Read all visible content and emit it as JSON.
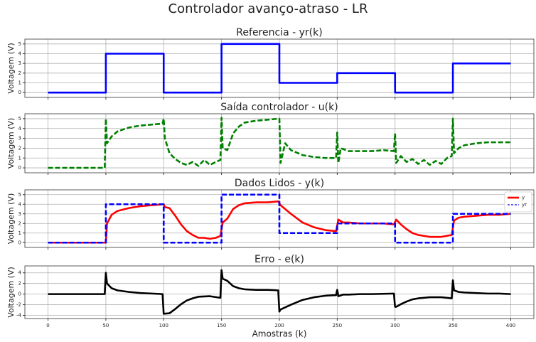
{
  "title": "Controlador avanço-atraso - LR",
  "chart_data": [
    {
      "type": "line",
      "title": "Referencia - yr(k)",
      "ylabel": "Voltagem (V)",
      "xlim": [
        -20,
        420
      ],
      "ylim": [
        -0.5,
        5.5
      ],
      "xticks": [
        0,
        50,
        100,
        150,
        200,
        250,
        300,
        350,
        400
      ],
      "yticks": [
        0,
        1,
        2,
        3,
        4,
        5
      ],
      "grid": true,
      "series": [
        {
          "name": "yr",
          "color": "#0000ff",
          "linestyle": "solid",
          "x": [
            0,
            50,
            50,
            100,
            100,
            150,
            150,
            200,
            200,
            250,
            250,
            300,
            300,
            350,
            350,
            400
          ],
          "values": [
            0,
            0,
            4,
            4,
            0,
            0,
            5,
            5,
            1,
            1,
            2,
            2,
            0,
            0,
            3,
            3
          ]
        }
      ]
    },
    {
      "type": "line",
      "title": "Saída controlador - u(k)",
      "ylabel": "Voltagem (V)",
      "xlim": [
        -20,
        420
      ],
      "ylim": [
        -0.5,
        5.5
      ],
      "xticks": [
        0,
        50,
        100,
        150,
        200,
        250,
        300,
        350,
        400
      ],
      "yticks": [
        0,
        1,
        2,
        3,
        4,
        5
      ],
      "grid": true,
      "series": [
        {
          "name": "u",
          "color": "#008000",
          "linestyle": "dashed",
          "x": [
            0,
            49,
            50,
            51,
            55,
            60,
            70,
            80,
            90,
            99,
            100,
            101,
            105,
            110,
            115,
            120,
            125,
            130,
            135,
            140,
            145,
            149,
            150,
            151,
            155,
            160,
            165,
            170,
            180,
            190,
            199,
            200,
            201,
            205,
            210,
            220,
            230,
            240,
            249,
            250,
            251,
            253,
            260,
            270,
            280,
            290,
            299,
            300,
            301,
            305,
            310,
            315,
            320,
            325,
            330,
            335,
            340,
            345,
            349,
            350,
            351,
            355,
            360,
            370,
            380,
            390,
            400
          ],
          "values": [
            0,
            0,
            5,
            2.5,
            3.2,
            3.7,
            4.1,
            4.3,
            4.4,
            4.5,
            5,
            3,
            1.5,
            0.9,
            0.5,
            0.3,
            0.6,
            0.2,
            0.8,
            0.3,
            0.6,
            0.8,
            5.1,
            2,
            1.8,
            3.5,
            4.2,
            4.6,
            4.8,
            4.9,
            5,
            5,
            0.5,
            2.5,
            1.8,
            1.3,
            1.1,
            1.0,
            1.0,
            3.6,
            0.5,
            2,
            1.7,
            1.7,
            1.7,
            1.8,
            1.7,
            3.5,
            0.5,
            1.2,
            0.6,
            0.9,
            0.4,
            0.8,
            0.3,
            0.7,
            0.4,
            1.0,
            1.2,
            5.0,
            1.5,
            2.0,
            2.3,
            2.5,
            2.6,
            2.6,
            2.6
          ]
        }
      ]
    },
    {
      "type": "line",
      "title": "Dados Lidos - y(k)",
      "ylabel": "Voltagem (V)",
      "xlim": [
        -20,
        420
      ],
      "ylim": [
        -0.5,
        5.5
      ],
      "xticks": [
        0,
        50,
        100,
        150,
        200,
        250,
        300,
        350,
        400
      ],
      "yticks": [
        0,
        1,
        2,
        3,
        4,
        5
      ],
      "grid": true,
      "legend": "upper right",
      "series": [
        {
          "name": "y",
          "color": "#ff0000",
          "linestyle": "solid",
          "x": [
            0,
            50,
            51,
            55,
            60,
            70,
            80,
            90,
            100,
            101,
            105,
            110,
            115,
            120,
            125,
            130,
            135,
            140,
            145,
            149,
            151,
            155,
            160,
            165,
            170,
            180,
            190,
            199,
            201,
            205,
            210,
            220,
            230,
            240,
            249,
            251,
            255,
            260,
            270,
            280,
            290,
            299,
            301,
            305,
            310,
            315,
            320,
            330,
            340,
            349,
            351,
            355,
            360,
            370,
            380,
            390,
            400
          ],
          "values": [
            0,
            0,
            2,
            2.9,
            3.3,
            3.6,
            3.8,
            3.9,
            4.0,
            3.7,
            3.6,
            2.8,
            1.9,
            1.2,
            0.8,
            0.5,
            0.5,
            0.4,
            0.5,
            0.7,
            2.1,
            2.5,
            3.5,
            3.9,
            4.1,
            4.2,
            4.2,
            4.3,
            3.9,
            3.5,
            3.0,
            2.1,
            1.6,
            1.3,
            1.2,
            2.4,
            2.1,
            2.1,
            2.0,
            2.0,
            2.0,
            1.9,
            2.4,
            1.9,
            1.4,
            1.0,
            0.8,
            0.6,
            0.6,
            0.8,
            2.3,
            2.6,
            2.7,
            2.8,
            2.9,
            2.9,
            3.0
          ]
        },
        {
          "name": "yr",
          "color": "#0000ff",
          "linestyle": "dashed",
          "x": [
            0,
            50,
            50,
            100,
            100,
            150,
            150,
            200,
            200,
            250,
            250,
            300,
            300,
            350,
            350,
            400
          ],
          "values": [
            0,
            0,
            4,
            4,
            0,
            0,
            5,
            5,
            1,
            1,
            2,
            2,
            0,
            0,
            3,
            3
          ]
        }
      ]
    },
    {
      "type": "line",
      "title": "Erro - e(k)",
      "ylabel": "Voltagem (V)",
      "xlabel": "Amostras (k)",
      "xlim": [
        -20,
        420
      ],
      "ylim": [
        -4.6,
        5.3
      ],
      "xticks": [
        0,
        50,
        100,
        150,
        200,
        250,
        300,
        350,
        400
      ],
      "yticks": [
        -4,
        -2,
        0,
        2,
        4
      ],
      "grid": true,
      "series": [
        {
          "name": "e",
          "color": "#000000",
          "linestyle": "solid",
          "x": [
            0,
            49,
            50,
            51,
            55,
            60,
            70,
            80,
            90,
            99,
            100,
            105,
            110,
            115,
            120,
            125,
            130,
            140,
            149,
            150,
            151,
            155,
            160,
            165,
            170,
            180,
            190,
            199,
            200,
            201,
            205,
            210,
            220,
            230,
            240,
            249,
            250,
            251,
            255,
            260,
            270,
            280,
            299,
            300,
            301,
            305,
            310,
            315,
            320,
            330,
            340,
            349,
            350,
            351,
            355,
            360,
            370,
            380,
            390,
            400
          ],
          "values": [
            0,
            0,
            4,
            2,
            1.1,
            0.7,
            0.4,
            0.2,
            0.1,
            0.0,
            -3.7,
            -3.6,
            -2.8,
            -1.9,
            -1.2,
            -0.8,
            -0.5,
            -0.4,
            -0.7,
            4.5,
            2.9,
            2.5,
            1.5,
            1.1,
            0.9,
            0.8,
            0.8,
            0.7,
            -3.3,
            -2.9,
            -2.5,
            -2.0,
            -1.1,
            -0.6,
            -0.3,
            -0.2,
            0.8,
            -0.4,
            -0.1,
            -0.1,
            0,
            0,
            0.1,
            -2.4,
            -2.4,
            -1.9,
            -1.4,
            -1.0,
            -0.8,
            -0.6,
            -0.6,
            -0.8,
            2.6,
            0.7,
            0.4,
            0.3,
            0.2,
            0.1,
            0.1,
            0
          ]
        }
      ]
    }
  ]
}
